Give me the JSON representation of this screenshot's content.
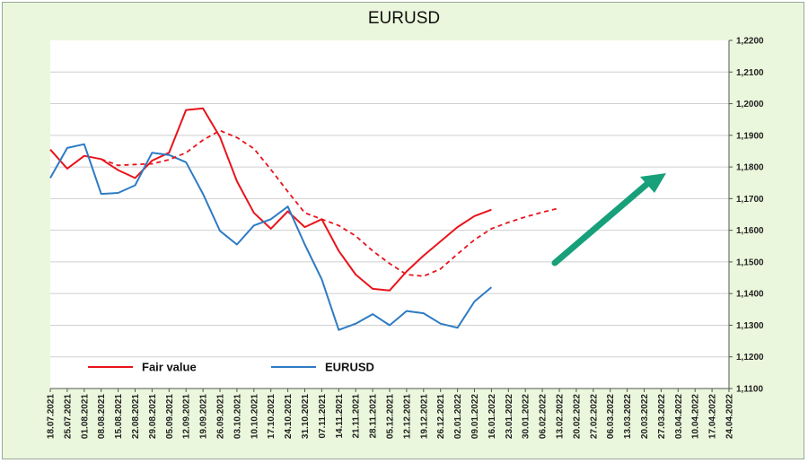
{
  "chart_data": {
    "type": "line",
    "title": "EURUSD",
    "x": [
      "18.07.2021",
      "25.07.2021",
      "01.08.2021",
      "08.08.2021",
      "15.08.2021",
      "22.08.2021",
      "29.08.2021",
      "05.09.2021",
      "12.09.2021",
      "19.09.2021",
      "26.09.2021",
      "03.10.2021",
      "10.10.2021",
      "17.10.2021",
      "24.10.2021",
      "31.10.2021",
      "07.11.2021",
      "14.11.2021",
      "21.11.2021",
      "28.11.2021",
      "05.12.2021",
      "12.12.2021",
      "19.12.2021",
      "26.12.2021",
      "02.01.2022",
      "09.01.2022",
      "16.01.2022",
      "23.01.2022",
      "30.01.2022",
      "06.02.2022",
      "13.02.2022",
      "20.02.2022",
      "27.02.2022",
      "06.03.2022",
      "13.03.2022",
      "20.03.2022",
      "27.03.2022",
      "03.04.2022",
      "10.04.2022",
      "17.04.2022",
      "24.04.2022"
    ],
    "ylim": [
      1.11,
      1.22
    ],
    "y_ticks": [
      "1,1100",
      "1,1200",
      "1,1300",
      "1,1400",
      "1,1500",
      "1,1600",
      "1,1700",
      "1,1800",
      "1,1900",
      "1,2000",
      "1,2100",
      "1,2200"
    ],
    "y_axis_position": "right",
    "grid": "horizontal",
    "legend_position": "bottom-left",
    "series": [
      {
        "name": "Fair value",
        "color": "#e8141c",
        "dash": false,
        "values": [
          1.1855,
          1.1795,
          1.1835,
          1.1825,
          1.179,
          1.1765,
          1.182,
          1.1845,
          1.198,
          1.1985,
          1.1895,
          1.1755,
          1.1655,
          1.1605,
          1.166,
          1.161,
          1.1635,
          1.1535,
          1.146,
          1.1415,
          1.141,
          1.147,
          1.152,
          1.1565,
          1.161,
          1.1645,
          1.1665,
          null,
          null,
          null,
          null,
          null,
          null,
          null,
          null,
          null,
          null,
          null,
          null,
          null,
          null
        ]
      },
      {
        "name": "EURUSD",
        "color": "#2e7bc4",
        "dash": false,
        "values": [
          1.1765,
          1.186,
          1.1872,
          1.1715,
          1.1718,
          1.1742,
          1.1845,
          1.1838,
          1.1815,
          1.1715,
          1.1598,
          1.1555,
          1.1615,
          1.1635,
          1.1675,
          1.1555,
          1.1445,
          1.1285,
          1.1305,
          1.1335,
          1.13,
          1.1345,
          1.1338,
          1.1305,
          1.1292,
          1.1375,
          1.142,
          null,
          null,
          null,
          null,
          null,
          null,
          null,
          null,
          null,
          null,
          null,
          null,
          null,
          null
        ]
      },
      {
        "color": "#e8141c",
        "dash": true,
        "values": [
          null,
          null,
          null,
          1.1825,
          1.1805,
          1.1808,
          1.181,
          1.1823,
          1.1845,
          1.1885,
          1.1915,
          1.1893,
          1.1858,
          1.1792,
          1.1722,
          1.1655,
          1.1635,
          1.1615,
          1.1582,
          1.1535,
          1.1495,
          1.146,
          1.1455,
          1.1478,
          1.1525,
          1.157,
          1.1605,
          1.1625,
          1.1642,
          1.1657,
          1.167,
          null,
          null,
          null,
          null,
          null,
          null,
          null,
          null,
          null,
          null
        ]
      }
    ],
    "annotations": [
      {
        "type": "arrow",
        "color": "#17a07a",
        "direction": "up-right"
      }
    ]
  }
}
